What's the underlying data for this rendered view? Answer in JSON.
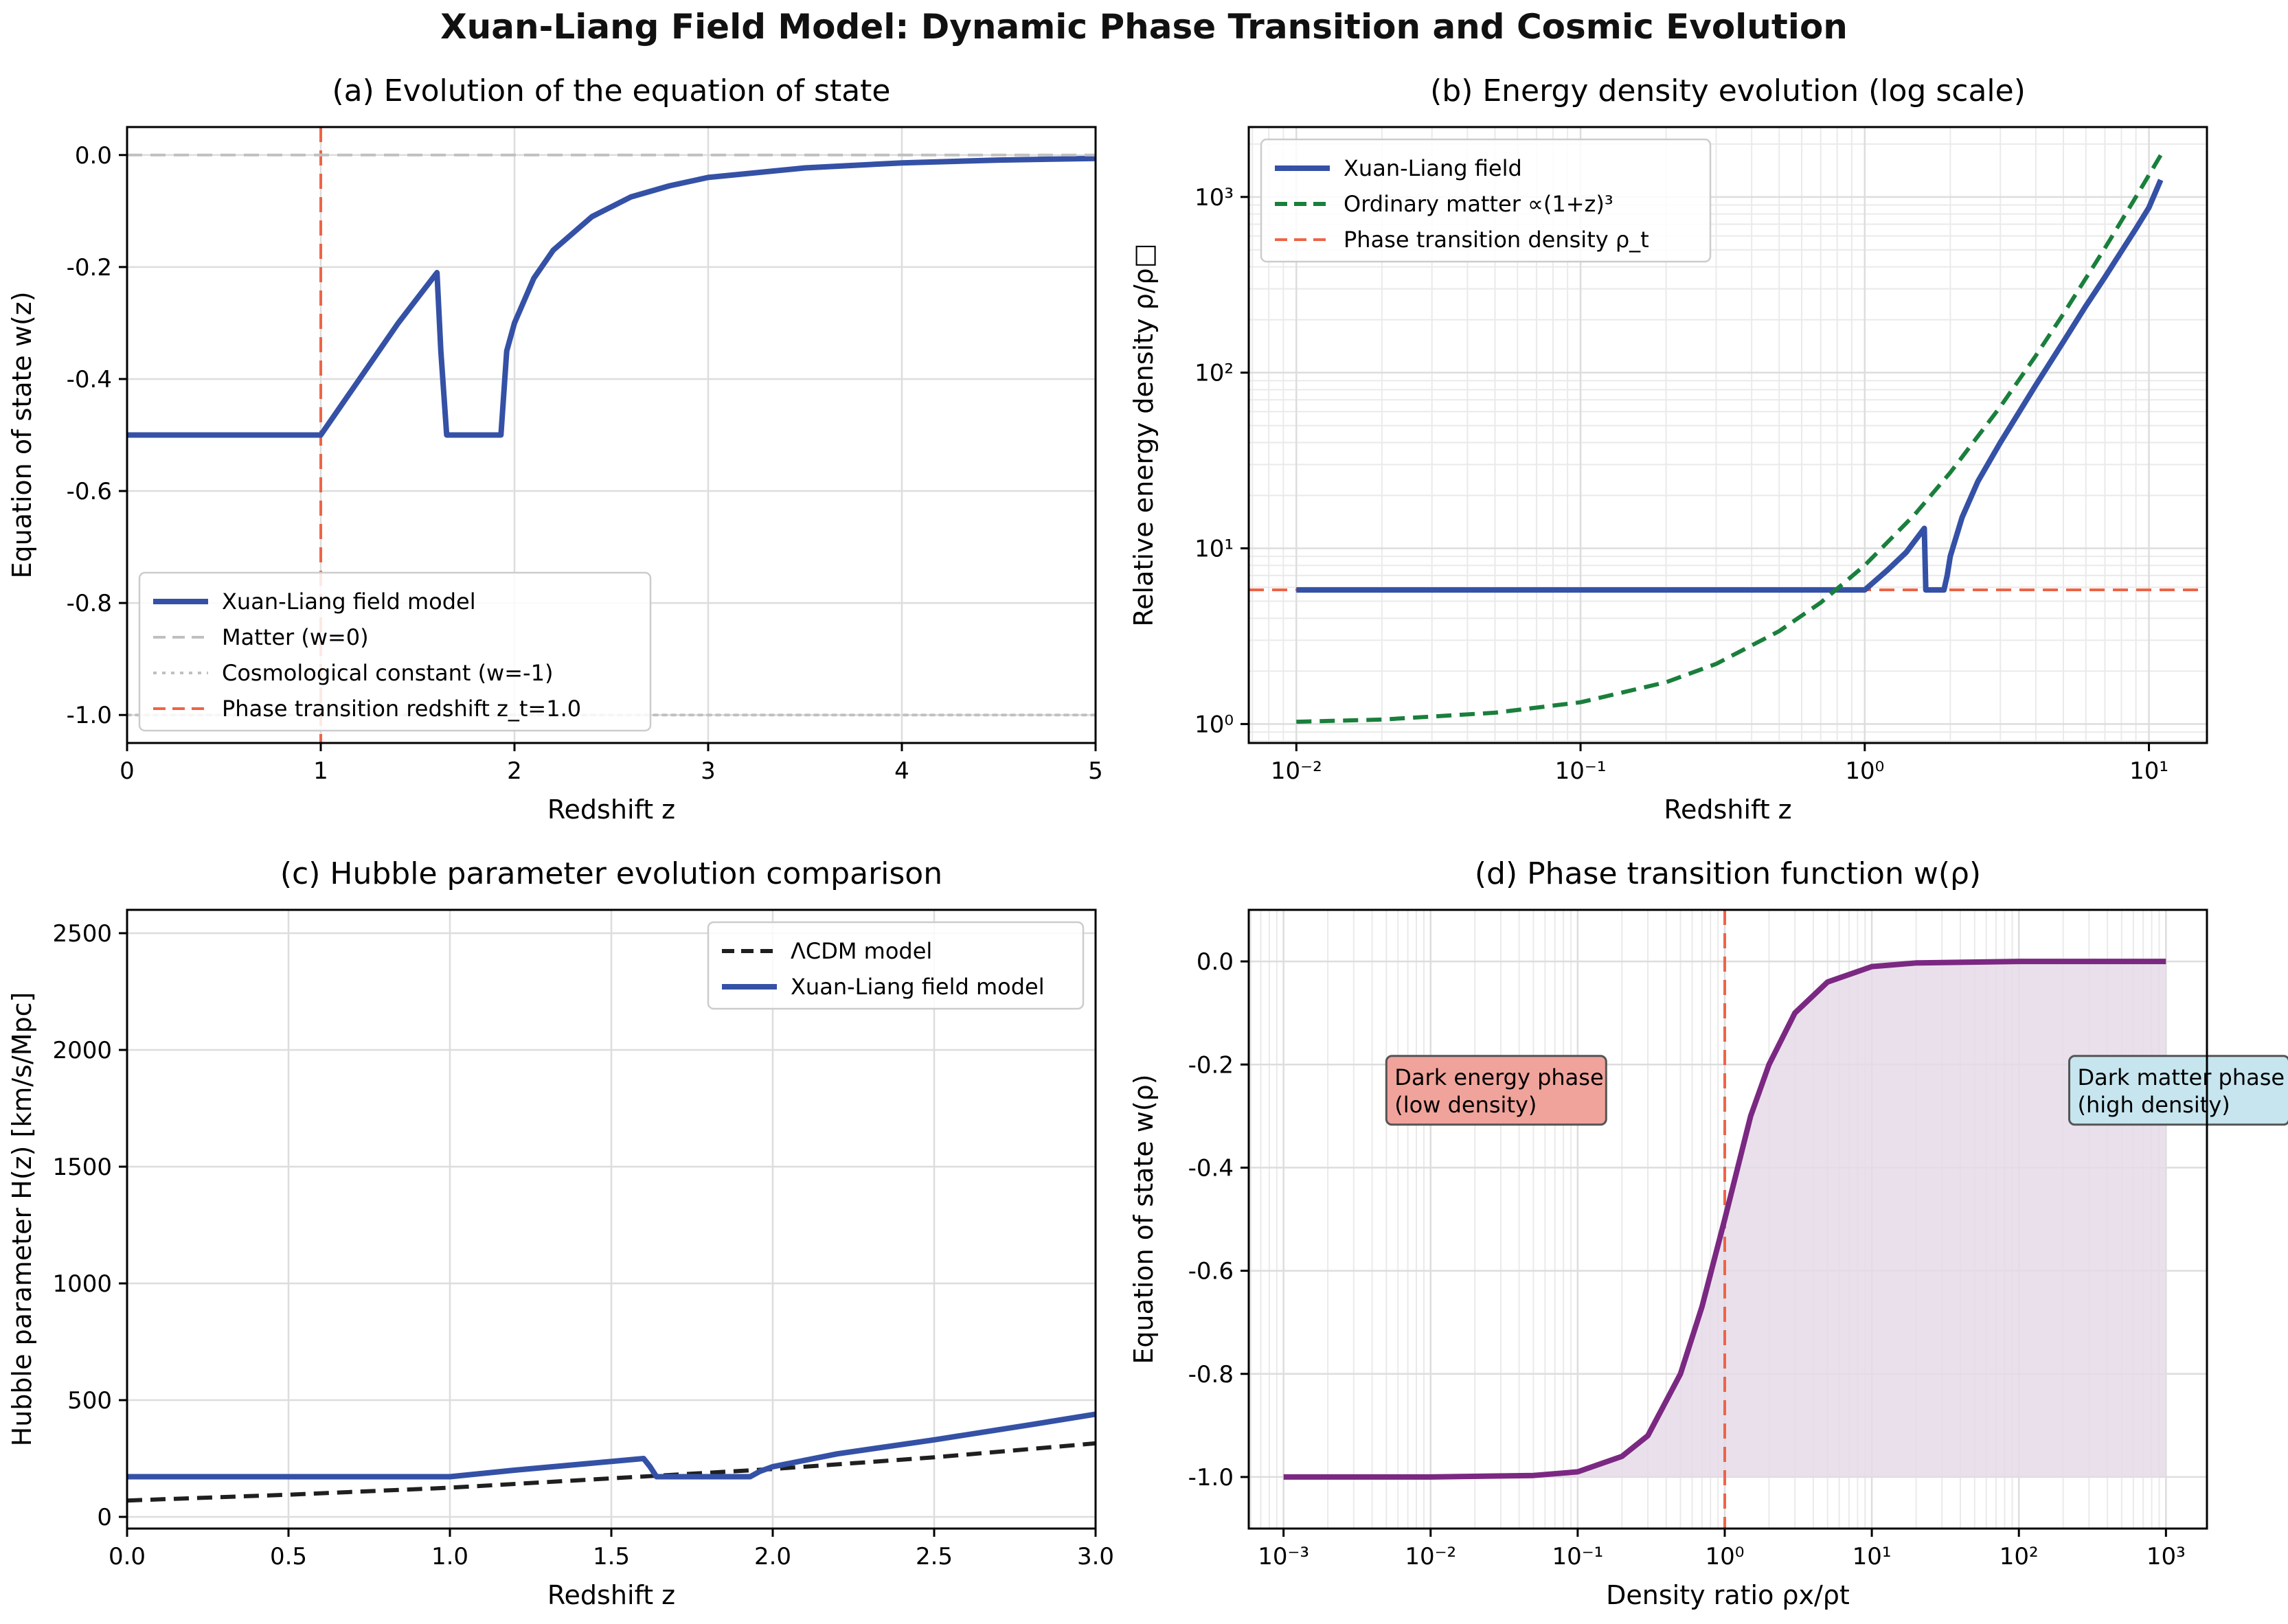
{
  "figure": {
    "title": "Xuan-Liang Field Model: Dynamic Phase Transition and Cosmic Evolution"
  },
  "colors": {
    "blue": "#3451a6",
    "red": "#ee6446",
    "green": "#1a7f3c",
    "black": "#1f1f1f",
    "gray": "#c0c0c0",
    "purple": "#7b2882",
    "purple_fill": "#e5dbe8",
    "de_box": "#f0a39b",
    "dm_box": "#c6e5ef",
    "grid": "#dddddd"
  },
  "chart_data": [
    {
      "id": "a",
      "type": "line",
      "title": "(a) Evolution of the equation of state",
      "xlabel": "Redshift z",
      "ylabel": "Equation of state w(z)",
      "xlim": [
        0,
        5
      ],
      "ylim": [
        -1.05,
        0.05
      ],
      "xticks": [
        0,
        1,
        2,
        3,
        4,
        5
      ],
      "xtick_labels": [
        "0",
        "1",
        "2",
        "3",
        "4",
        "5"
      ],
      "yticks": [
        0.0,
        -0.2,
        -0.4,
        -0.6,
        -0.8,
        -1.0
      ],
      "ytick_labels": [
        "0.0",
        "-0.2",
        "-0.4",
        "-0.6",
        "-0.8",
        "-1.0"
      ],
      "grid": true,
      "legend_position": "lower-left",
      "series": [
        {
          "name": "Xuan-Liang field model",
          "style": "solid",
          "color": "blue",
          "x": [
            0,
            1.0,
            1.1,
            1.2,
            1.3,
            1.4,
            1.5,
            1.6,
            1.62,
            1.65,
            1.7,
            1.8,
            1.93,
            1.96,
            2.0,
            2.1,
            2.2,
            2.4,
            2.6,
            2.8,
            3.0,
            3.5,
            4.0,
            4.5,
            5.0
          ],
          "y": [
            -0.5,
            -0.5,
            -0.45,
            -0.4,
            -0.35,
            -0.3,
            -0.255,
            -0.21,
            -0.35,
            -0.5,
            -0.5,
            -0.5,
            -0.5,
            -0.35,
            -0.3,
            -0.22,
            -0.17,
            -0.11,
            -0.075,
            -0.055,
            -0.04,
            -0.023,
            -0.014,
            -0.009,
            -0.006
          ]
        },
        {
          "name": "Matter (w=0)",
          "style": "dashed",
          "color": "gray",
          "x": [
            0,
            5
          ],
          "y": [
            0,
            0
          ]
        },
        {
          "name": "Cosmological constant (w=-1)",
          "style": "dotted",
          "color": "gray",
          "x": [
            0,
            5
          ],
          "y": [
            -1,
            -1
          ]
        }
      ],
      "vlines": [
        {
          "name": "Phase transition redshift z_t=1.0",
          "x": 1.0,
          "style": "dashed",
          "color": "red"
        }
      ]
    },
    {
      "id": "b",
      "type": "line",
      "title": "(b) Energy density evolution (log scale)",
      "xlabel": "Redshift z",
      "ylabel": "Relative energy density ρ/ρ□",
      "xscale": "log",
      "yscale": "log",
      "xlim": [
        0.0068,
        16
      ],
      "ylim": [
        0.78,
        2500
      ],
      "xticks": [
        0.01,
        0.1,
        1,
        10
      ],
      "xtick_labels": [
        "10⁻²",
        "10⁻¹",
        "10⁰",
        "10¹"
      ],
      "yticks": [
        1,
        10,
        100,
        1000
      ],
      "ytick_labels": [
        "10⁰",
        "10¹",
        "10²",
        "10³"
      ],
      "grid": true,
      "legend_position": "upper-left",
      "series": [
        {
          "name": "Xuan-Liang field",
          "style": "solid",
          "color": "blue",
          "x": [
            0.01,
            0.1,
            0.5,
            1.0,
            1.2,
            1.4,
            1.62,
            1.64,
            1.7,
            1.9,
            1.95,
            2.0,
            2.2,
            2.5,
            3,
            4,
            5,
            6,
            7,
            8,
            9,
            10,
            11
          ],
          "y": [
            5.8,
            5.8,
            5.8,
            5.8,
            7.5,
            9.5,
            13.0,
            5.8,
            5.8,
            5.8,
            7.0,
            9.0,
            15.0,
            24,
            40,
            85,
            150,
            240,
            350,
            490,
            660,
            870,
            1250
          ]
        },
        {
          "name": "Ordinary matter ∝(1+z)³",
          "style": "dashed",
          "color": "green",
          "x": [
            0.01,
            0.02,
            0.05,
            0.1,
            0.2,
            0.3,
            0.5,
            0.7,
            1,
            1.5,
            2,
            3,
            4,
            5,
            7,
            9,
            11
          ],
          "y": [
            1.03,
            1.06,
            1.16,
            1.33,
            1.73,
            2.2,
            3.38,
            4.91,
            8,
            15.6,
            27,
            64,
            125,
            216,
            512,
            1000,
            1728
          ]
        }
      ],
      "hlines": [
        {
          "name": "Phase transition density ρ_t",
          "y": 5.8,
          "style": "dashed",
          "color": "red"
        }
      ]
    },
    {
      "id": "c",
      "type": "line",
      "title": "(c) Hubble parameter evolution comparison",
      "xlabel": "Redshift z",
      "ylabel": "Hubble parameter H(z) [km/s/Mpc]",
      "xlim": [
        0,
        3
      ],
      "ylim": [
        -50,
        2600
      ],
      "xticks": [
        0.0,
        0.5,
        1.0,
        1.5,
        2.0,
        2.5,
        3.0
      ],
      "xtick_labels": [
        "0.0",
        "0.5",
        "1.0",
        "1.5",
        "2.0",
        "2.5",
        "3.0"
      ],
      "yticks": [
        0,
        500,
        1000,
        1500,
        2000,
        2500
      ],
      "ytick_labels": [
        "0",
        "500",
        "1000",
        "1500",
        "2000",
        "2500"
      ],
      "grid": true,
      "legend_position": "upper-right",
      "series": [
        {
          "name": "ΛCDM model",
          "style": "dashed",
          "color": "black",
          "x": [
            0,
            0.5,
            1.0,
            1.5,
            2.0,
            2.5,
            3.0
          ],
          "y": [
            70,
            95,
            125,
            165,
            205,
            255,
            315
          ]
        },
        {
          "name": "Xuan-Liang field model",
          "style": "solid",
          "color": "blue",
          "x": [
            0,
            1.0,
            1.2,
            1.4,
            1.6,
            1.62,
            1.64,
            1.8,
            1.93,
            1.96,
            2.0,
            2.2,
            2.5,
            2.8,
            3.0
          ],
          "y": [
            172,
            172,
            200,
            225,
            250,
            215,
            172,
            172,
            172,
            195,
            215,
            270,
            330,
            395,
            440
          ]
        }
      ]
    },
    {
      "id": "d",
      "type": "area",
      "title": "(d) Phase transition function w(ρ)",
      "xlabel": "Density ratio ρx/ρt",
      "ylabel": "Equation of state w(ρ)",
      "xscale": "log",
      "xlim": [
        0.00058,
        1900
      ],
      "ylim": [
        -1.1,
        0.1
      ],
      "xticks": [
        0.001,
        0.01,
        0.1,
        1,
        10,
        100,
        1000
      ],
      "xtick_labels": [
        "10⁻³",
        "10⁻²",
        "10⁻¹",
        "10⁰",
        "10¹",
        "10²",
        "10³"
      ],
      "yticks": [
        0.0,
        -0.2,
        -0.4,
        -0.6,
        -0.8,
        -1.0
      ],
      "ytick_labels": [
        "0.0",
        "-0.2",
        "-0.4",
        "-0.6",
        "-0.8",
        "-1.0"
      ],
      "grid": true,
      "series": [
        {
          "style": "solid",
          "color": "purple",
          "fill_to": -1.0,
          "x": [
            0.001,
            0.01,
            0.05,
            0.1,
            0.2,
            0.3,
            0.5,
            0.7,
            1,
            1.5,
            2,
            3,
            5,
            10,
            20,
            100,
            1000
          ],
          "y": [
            -1.0,
            -1.0,
            -0.997,
            -0.99,
            -0.96,
            -0.92,
            -0.8,
            -0.67,
            -0.5,
            -0.3,
            -0.2,
            -0.1,
            -0.04,
            -0.01,
            -0.003,
            0.0,
            0.0
          ]
        }
      ],
      "vlines": [
        {
          "x": 1,
          "style": "dashed",
          "color": "red"
        }
      ],
      "annotations": [
        {
          "lines": [
            "Dark energy phase",
            "(low density)"
          ],
          "box_color": "de_box",
          "x": 0.005,
          "y": -0.25
        },
        {
          "lines": [
            "Dark matter phase",
            "(high density)"
          ],
          "box_color": "dm_box",
          "x": 220,
          "y": -0.25
        }
      ]
    }
  ]
}
